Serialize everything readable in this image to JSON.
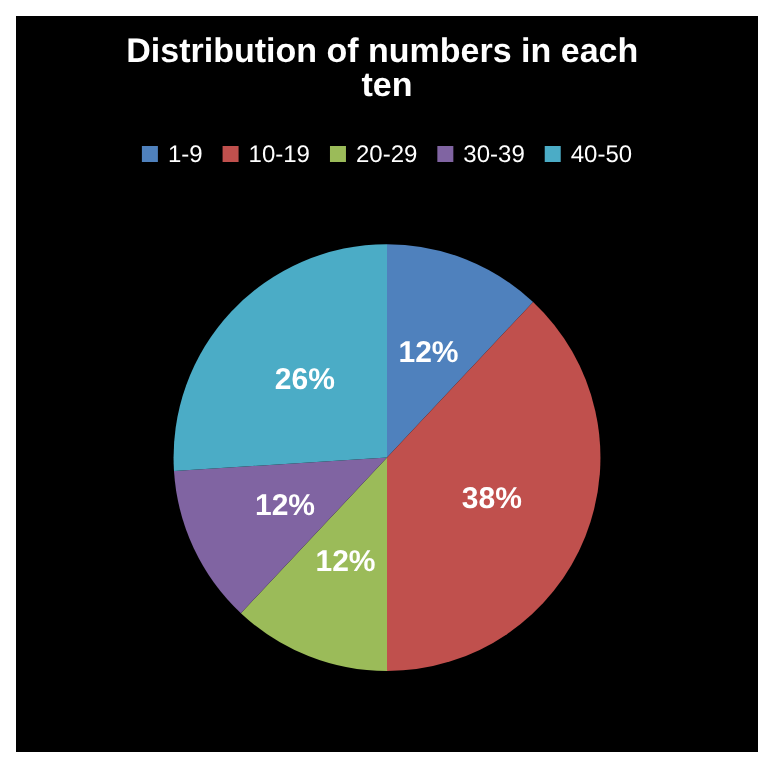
{
  "chart_data": {
    "type": "pie",
    "title": "Distribution of numbers in each ten",
    "categories": [
      "1-9",
      "10-19",
      "20-29",
      "30-39",
      "40-50"
    ],
    "values": [
      12,
      38,
      12,
      12,
      26
    ],
    "colors": [
      "#4f81bd",
      "#c0504d",
      "#9bbb59",
      "#8064a2",
      "#4bacc6"
    ],
    "value_labels": [
      "12%",
      "38%",
      "12%",
      "12%",
      "26%"
    ],
    "legend": "top"
  }
}
